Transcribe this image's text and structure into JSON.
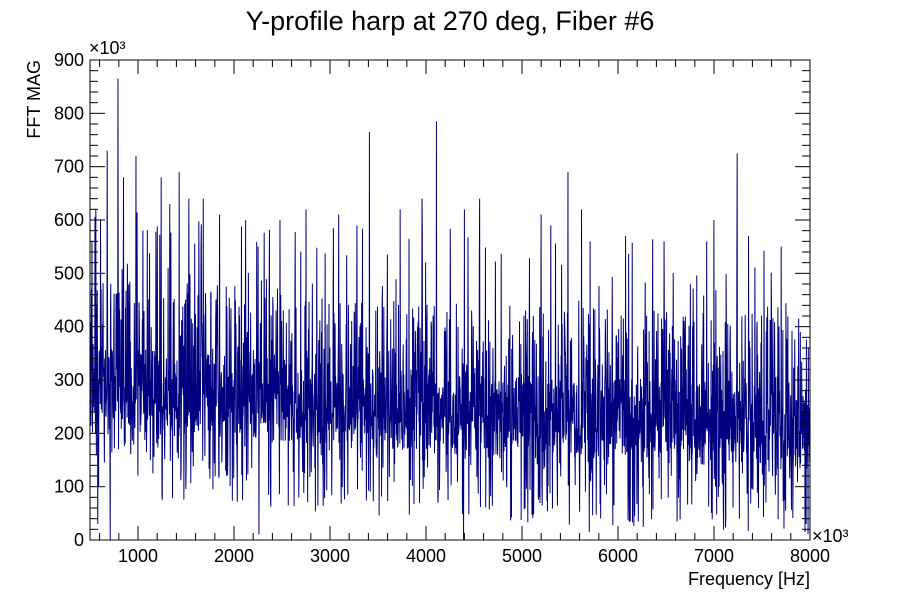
{
  "chart_data": {
    "type": "line",
    "title": "Y-profile harp at 270 deg, Fiber #6",
    "xlabel": "Frequency [Hz]",
    "ylabel": "FFT MAG",
    "x_multiplier": "×10³",
    "y_multiplier": "×10³",
    "x_unit_scale": 1000,
    "y_unit_scale": 1000,
    "xlim": [
      500,
      8000
    ],
    "ylim": [
      0,
      900
    ],
    "x_ticks": [
      1000,
      2000,
      3000,
      4000,
      5000,
      6000,
      7000,
      8000
    ],
    "y_ticks": [
      0,
      100,
      200,
      300,
      400,
      500,
      600,
      700,
      800,
      900
    ],
    "grid": false,
    "legend": "none",
    "line_color": "#000080",
    "series": [
      {
        "style": "spiky noise spectrum",
        "baseline_trend": [
          [
            500,
            280
          ],
          [
            2000,
            270
          ],
          [
            3000,
            250
          ],
          [
            4500,
            235
          ],
          [
            6000,
            225
          ],
          [
            8000,
            210
          ]
        ],
        "notable_peaks": [
          [
            520,
            560
          ],
          [
            560,
            620
          ],
          [
            610,
            600
          ],
          [
            680,
            730
          ],
          [
            790,
            865
          ],
          [
            850,
            680
          ],
          [
            980,
            720
          ],
          [
            1240,
            680
          ],
          [
            1330,
            630
          ],
          [
            1430,
            690
          ],
          [
            1530,
            640
          ],
          [
            1680,
            640
          ],
          [
            1850,
            610
          ],
          [
            2120,
            600
          ],
          [
            2250,
            550
          ],
          [
            2480,
            600
          ],
          [
            2750,
            620
          ],
          [
            3090,
            610
          ],
          [
            3280,
            590
          ],
          [
            3410,
            765
          ],
          [
            3730,
            620
          ],
          [
            3960,
            640
          ],
          [
            4110,
            785
          ],
          [
            4400,
            620
          ],
          [
            4560,
            640
          ],
          [
            5200,
            610
          ],
          [
            5300,
            590
          ],
          [
            5480,
            690
          ],
          [
            5620,
            620
          ],
          [
            5710,
            560
          ],
          [
            6080,
            570
          ],
          [
            6480,
            560
          ],
          [
            7000,
            600
          ],
          [
            7240,
            725
          ],
          [
            7360,
            570
          ],
          [
            7700,
            550
          ],
          [
            7960,
            600
          ]
        ],
        "notable_dips": [
          [
            580,
            30
          ],
          [
            710,
            0
          ],
          [
            2260,
            10
          ],
          [
            4390,
            0
          ],
          [
            5700,
            15
          ],
          [
            7960,
            30
          ]
        ]
      }
    ]
  }
}
